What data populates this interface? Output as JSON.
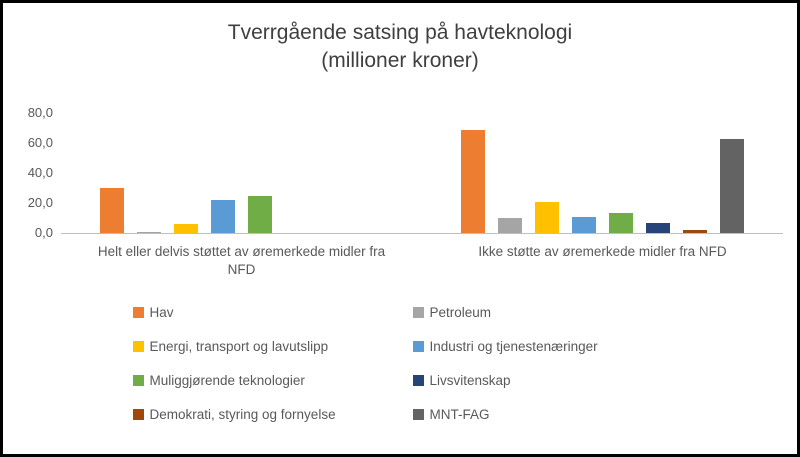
{
  "chart_data": {
    "type": "bar",
    "title_line1": "Tverrgående satsing på havteknologi",
    "title_line2": "(millioner kroner)",
    "categories": [
      "Helt eller delvis støttet av øremerkede midler fra NFD",
      "Ikke støtte av øremerkede midler fra NFD"
    ],
    "series": [
      {
        "name": "Hav",
        "color": "#ED7D31",
        "values": [
          30,
          69
        ]
      },
      {
        "name": "Petroleum",
        "color": "#A5A5A5",
        "values": [
          1,
          10
        ]
      },
      {
        "name": "Energi, transport og lavutslipp",
        "color": "#FFC000",
        "values": [
          6,
          21
        ]
      },
      {
        "name": "Industri og tjenestenæringer",
        "color": "#5B9BD5",
        "values": [
          22,
          11
        ]
      },
      {
        "name": "Muliggjørende teknologier",
        "color": "#70AD47",
        "values": [
          25,
          13.5
        ]
      },
      {
        "name": "Livsvitenskap",
        "color": "#264478",
        "values": [
          0,
          7
        ]
      },
      {
        "name": "Demokrati, styring og fornyelse",
        "color": "#9E480E",
        "values": [
          0,
          2
        ]
      },
      {
        "name": "MNT-FAG",
        "color": "#636363",
        "values": [
          0,
          63
        ]
      }
    ],
    "y_axis": {
      "ticks": [
        "0,0",
        "20,0",
        "40,0",
        "60,0",
        "80,0"
      ],
      "tick_values": [
        0,
        20,
        40,
        60,
        80
      ],
      "max": 80
    },
    "ylim": [
      0,
      80
    ],
    "grid": false,
    "legend_position": "bottom",
    "axis_line_color": "#BFBFBF",
    "text_color": "#595959"
  }
}
